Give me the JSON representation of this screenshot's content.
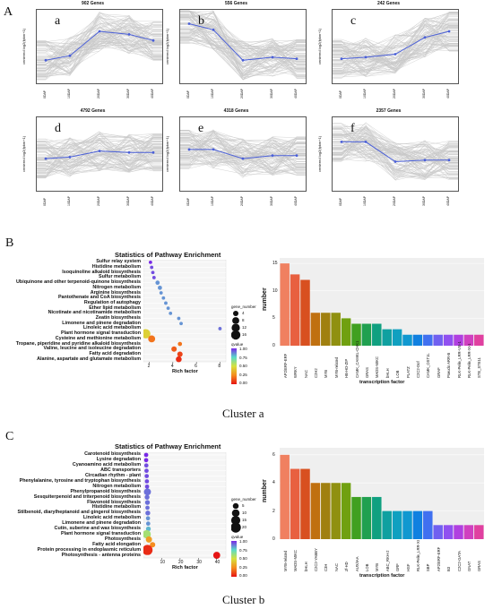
{
  "panel_labels": {
    "A": "A",
    "B": "B",
    "C": "C"
  },
  "trend_axis": {
    "ylabel": "centered log2(fpkm+1)",
    "xticks": [
      "0DAP",
      "10DAP",
      "20DAP",
      "30DAP",
      "40DAP"
    ]
  },
  "captions": {
    "a": "Cluster a",
    "b": "Cluster b"
  },
  "enrichment_title": "Statistics of Pathway Enrichment",
  "enrich_xlabel": "Rich factor",
  "legend": {
    "size_title": "gene_number",
    "color_title": "qvalue",
    "a_sizes": [
      "4",
      "8",
      "12",
      "16"
    ],
    "b_sizes": [
      "5",
      "10",
      "15",
      "20"
    ],
    "q_ticks": [
      "1.00",
      "0.75",
      "0.50",
      "0.25",
      "0.00"
    ]
  },
  "tf_xlabel": "transcription factor",
  "tf_ylabel": "number",
  "colors": {
    "trend_mean": "#4a5fd8",
    "background_line": "#c8c8c8"
  },
  "chart_data": [
    {
      "id": "a",
      "type": "line",
      "title": "902 Genes",
      "x": [
        "0DAP",
        "10DAP",
        "20DAP",
        "30DAP",
        "40DAP"
      ],
      "series": [
        {
          "values": [
            -0.9,
            -0.6,
            1.0,
            0.8,
            0.4
          ]
        }
      ]
    },
    {
      "id": "b",
      "type": "line",
      "title": "556 Genes",
      "x": [
        "0DAP",
        "10DAP",
        "20DAP",
        "30DAP",
        "40DAP"
      ],
      "series": [
        {
          "values": [
            1.5,
            1.1,
            -0.9,
            -0.7,
            -0.8
          ]
        }
      ]
    },
    {
      "id": "c",
      "type": "line",
      "title": "242 Genes",
      "x": [
        "0DAP",
        "10DAP",
        "20DAP",
        "30DAP",
        "40DAP"
      ],
      "series": [
        {
          "values": [
            -0.8,
            -0.7,
            -0.5,
            0.6,
            1.0
          ]
        }
      ]
    },
    {
      "id": "d",
      "type": "line",
      "title": "4792 Genes",
      "x": [
        "0DAP",
        "10DAP",
        "20DAP",
        "30DAP",
        "40DAP"
      ],
      "series": [
        {
          "values": [
            -0.3,
            -0.2,
            0.2,
            0.1,
            0.1
          ]
        }
      ]
    },
    {
      "id": "e",
      "type": "line",
      "title": "4318 Genes",
      "x": [
        "0DAP",
        "10DAP",
        "20DAP",
        "30DAP",
        "40DAP"
      ],
      "series": [
        {
          "values": [
            0.3,
            0.3,
            -0.3,
            -0.1,
            -0.1
          ]
        }
      ]
    },
    {
      "id": "f",
      "type": "line",
      "title": "2357 Genes",
      "x": [
        "0DAP",
        "10DAP",
        "20DAP",
        "30DAP",
        "40DAP"
      ],
      "series": [
        {
          "values": [
            0.8,
            0.8,
            -0.5,
            -0.4,
            -0.4
          ]
        }
      ]
    },
    {
      "id": "enrich_a",
      "type": "scatter",
      "xlabel": "Rich factor",
      "xlim": [
        1.5,
        8.5
      ],
      "xticks": [
        2,
        4,
        6,
        8
      ],
      "terms": [
        "Sulfur relay system",
        "Histidine metabolism",
        "Isoquinoline alkaloid biosynthesis",
        "Sulfur metabolism",
        "Ubiquinone and other terpenoid-quinone biosynthesis",
        "Nitrogen metabolism",
        "Arginine biosynthesis",
        "Pantothenate and CoA biosynthesis",
        "Regulation of autophagy",
        "Ether lipid metabolism",
        "Nicotinate and nicotinamide metabolism",
        "Zeatin biosynthesis",
        "Limonene and pinene degradation",
        "Linoleic acid metabolism",
        "Plant hormone signal transduction",
        "Cysteine and methionine metabolism",
        "Tropane, piperidine and pyridine alkaloid biosynthesis",
        "Valine, leucine and isoleucine degradation",
        "Fatty acid degradation",
        "Alanine, aspartate and glutamate metabolism"
      ],
      "rich_factor": [
        2.1,
        2.2,
        2.3,
        2.4,
        2.7,
        2.9,
        3.0,
        3.2,
        3.4,
        3.6,
        3.8,
        4.5,
        4.7,
        8.0,
        1.7,
        2.2,
        4.6,
        4.1,
        4.6,
        4.5
      ],
      "gene_number": [
        1,
        1,
        1,
        1,
        2,
        2,
        1,
        1,
        1,
        1,
        1,
        1,
        1,
        1,
        16,
        8,
        2,
        4,
        4,
        5
      ],
      "qvalue": [
        1.0,
        0.95,
        0.95,
        0.95,
        0.85,
        0.85,
        0.85,
        0.85,
        0.85,
        0.85,
        0.85,
        0.85,
        0.85,
        0.9,
        0.45,
        0.2,
        0.2,
        0.15,
        0.1,
        0.05
      ]
    },
    {
      "id": "tf_a",
      "type": "bar",
      "ylabel": "number",
      "xlabel": "transcription factor",
      "ylim": [
        0,
        16
      ],
      "yticks": [
        0,
        5,
        10,
        15
      ],
      "categories": [
        "AP2/ERF-ERF",
        "WRKY",
        "NAC",
        "C2H2",
        "MYB",
        "MYB-related",
        "HB-HD-ZIP",
        "CAMK_CAMKL-CHK1",
        "GRAS",
        "MADS-MIKC",
        "bHLH",
        "LOB",
        "PLATZ",
        "C2C2-Dof",
        "CAMK_OST1L",
        "GRAF",
        "Pseudo ARR-B",
        "RLK-Pelle_LRR-VIII-1",
        "RLK-Pelle_LRR-XI-1",
        "STE_STE11"
      ],
      "values": [
        15,
        13,
        12,
        6,
        6,
        6,
        5,
        4,
        4,
        4,
        3,
        3,
        2,
        2,
        2,
        2,
        2,
        2,
        2,
        2
      ]
    },
    {
      "id": "enrich_b",
      "type": "scatter",
      "xlabel": "Rich factor",
      "xlim": [
        0,
        45
      ],
      "xticks": [
        10,
        20,
        30,
        40
      ],
      "terms": [
        "Carotenoid biosynthesis",
        "Lysine degradation",
        "Cyanoamino acid metabolism",
        "ABC transporters",
        "Circadian rhythm - plant",
        "Phenylalanine, tyrosine and tryptophan biosynthesis",
        "Nitrogen metabolism",
        "Phenylpropanoid biosynthesis",
        "Sesquiterpenoid and triterpenoid biosynthesis",
        "Flavonoid biosynthesis",
        "Histidine metabolism",
        "Stilbenoid, diarylheptanoid and gingerol biosynthesis",
        "Linoleic acid metabolism",
        "Limonene and pinene degradation",
        "Cutin, suberine and wax biosynthesis",
        "Plant hormone signal transduction",
        "Photosynthesis",
        "Fatty acid elongation",
        "Protein processing in endoplasmic reticulum",
        "Photosynthesis - antenna proteins"
      ],
      "rich_factor": [
        1.5,
        1.5,
        1.6,
        1.7,
        1.8,
        1.9,
        2.0,
        2.2,
        2.0,
        2.2,
        2.2,
        2.4,
        2.5,
        2.6,
        2.7,
        1.8,
        3.0,
        5.0,
        2.2,
        40.0
      ],
      "gene_number": [
        2,
        2,
        2,
        2,
        2,
        2,
        2,
        8,
        3,
        3,
        2,
        3,
        2,
        2,
        3,
        12,
        6,
        4,
        20,
        8
      ],
      "qvalue": [
        1.0,
        1.0,
        0.95,
        0.95,
        0.95,
        0.95,
        0.95,
        0.9,
        0.9,
        0.9,
        0.9,
        0.9,
        0.85,
        0.85,
        0.8,
        0.6,
        0.3,
        0.25,
        0.05,
        0.0
      ]
    },
    {
      "id": "tf_b",
      "type": "bar",
      "ylabel": "number",
      "xlabel": "transcription factor",
      "ylim": [
        0,
        6.5
      ],
      "yticks": [
        0,
        2,
        4,
        6
      ],
      "categories": [
        "MYB-related",
        "MADS-MIKC",
        "bHLH",
        "C2C2-YABBY",
        "C3H",
        "NAC",
        "zf-HD",
        "AUX/IAA",
        "LOB",
        "MYB",
        "ABC_RKH-2",
        "GRF",
        "HSF",
        "RLK-Pelle_LRR-XI",
        "SBP",
        "AP2/ERF-ERF",
        "B3",
        "C2C2-GATA",
        "GNAT",
        "GRAS"
      ],
      "values": [
        6,
        5,
        5,
        4,
        4,
        4,
        4,
        3,
        3,
        3,
        2,
        2,
        2,
        2,
        2,
        1,
        1,
        1,
        1,
        1
      ]
    }
  ]
}
